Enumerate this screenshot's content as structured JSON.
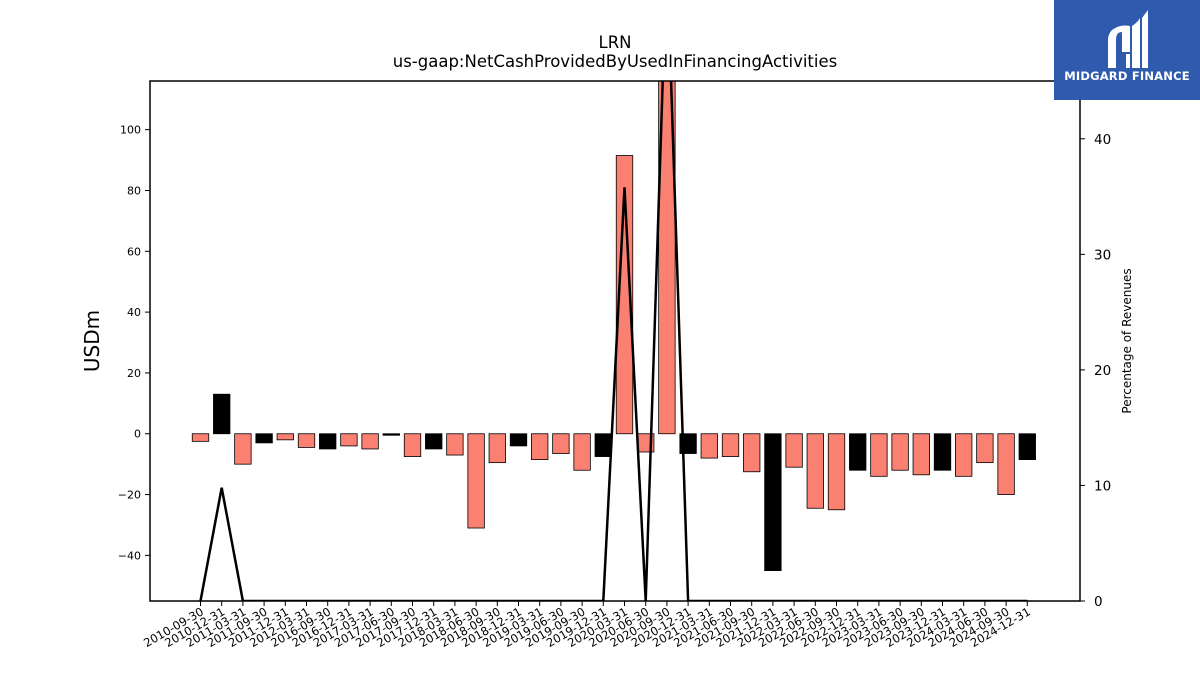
{
  "chart_data": {
    "type": "bar",
    "title": "LRN",
    "subtitle": "us-gaap:NetCashProvidedByUsedInFinancingActivities",
    "ylabel": "USDm",
    "y2label": "Percentage of Revenues",
    "ylim": [
      -55,
      116
    ],
    "y2lim": [
      0,
      45
    ],
    "yticks": [
      -40,
      -20,
      0,
      20,
      40,
      60,
      80,
      100
    ],
    "yticklabels": [
      "−40",
      "−20",
      "0",
      "20",
      "40",
      "60",
      "80",
      "100"
    ],
    "y2ticks": [
      0,
      10,
      20,
      30,
      40
    ],
    "colors": {
      "quarter": "#fa8072",
      "year_end": "#000000",
      "line": "#000000",
      "edge": "#000000"
    },
    "categories": [
      "2010-09-30",
      "2010-12-31",
      "2011-03-31",
      "2011-09-30",
      "2011-12-31",
      "2012-03-31",
      "2016-09-30",
      "2016-12-31",
      "2017-03-31",
      "2017-06-30",
      "2017-09-30",
      "2017-12-31",
      "2018-03-31",
      "2018-06-30",
      "2018-09-30",
      "2018-12-31",
      "2019-03-31",
      "2019-06-30",
      "2019-09-30",
      "2019-12-31",
      "2020-03-31",
      "2020-06-30",
      "2020-09-30",
      "2020-12-31",
      "2021-03-31",
      "2021-06-30",
      "2021-09-30",
      "2021-12-31",
      "2022-03-31",
      "2022-06-30",
      "2022-09-30",
      "2022-12-31",
      "2023-03-31",
      "2023-06-30",
      "2023-09-30",
      "2023-12-31",
      "2024-03-31",
      "2024-06-30",
      "2024-09-30",
      "2024-12-31"
    ],
    "series": [
      {
        "values": [
          -2.5,
          13,
          -10,
          -3,
          -2,
          -4.5,
          -5,
          -4,
          -5,
          -0.5,
          -7.5,
          -5,
          -7,
          -31,
          -9.5,
          -4,
          -8.5,
          -6.5,
          -12,
          -7.5,
          91.5,
          -6,
          135,
          -6.5,
          -8,
          -7.5,
          -12.5,
          -45,
          -11,
          -24.5,
          -25,
          -12,
          -14,
          -12,
          -13.5,
          -12,
          -14,
          -9.5,
          -20,
          -8.5
        ],
        "colors_by_point": [
          "quarter",
          "year_end",
          "quarter",
          "year_end",
          "quarter",
          "quarter",
          "year_end",
          "quarter",
          "quarter",
          "year_end",
          "quarter",
          "year_end",
          "quarter",
          "quarter",
          "quarter",
          "year_end",
          "quarter",
          "quarter",
          "quarter",
          "year_end",
          "quarter",
          "quarter",
          "quarter",
          "year_end",
          "quarter",
          "quarter",
          "quarter",
          "year_end",
          "quarter",
          "quarter",
          "quarter",
          "year_end",
          "quarter",
          "quarter",
          "quarter",
          "year_end",
          "quarter",
          "quarter",
          "quarter",
          "year_end"
        ]
      },
      {
        "name_axis": "y2",
        "values": [
          0,
          9.8,
          0,
          0,
          0,
          0,
          0,
          0,
          0,
          0,
          0,
          0,
          0,
          0,
          0,
          0,
          0,
          0,
          0,
          0,
          35.8,
          0,
          56,
          0,
          0,
          0,
          0,
          0,
          0,
          0,
          0,
          0,
          0,
          0,
          0,
          0,
          0,
          0,
          0,
          0
        ]
      }
    ]
  },
  "logo": {
    "text": "MIDGARD FINANCE"
  }
}
